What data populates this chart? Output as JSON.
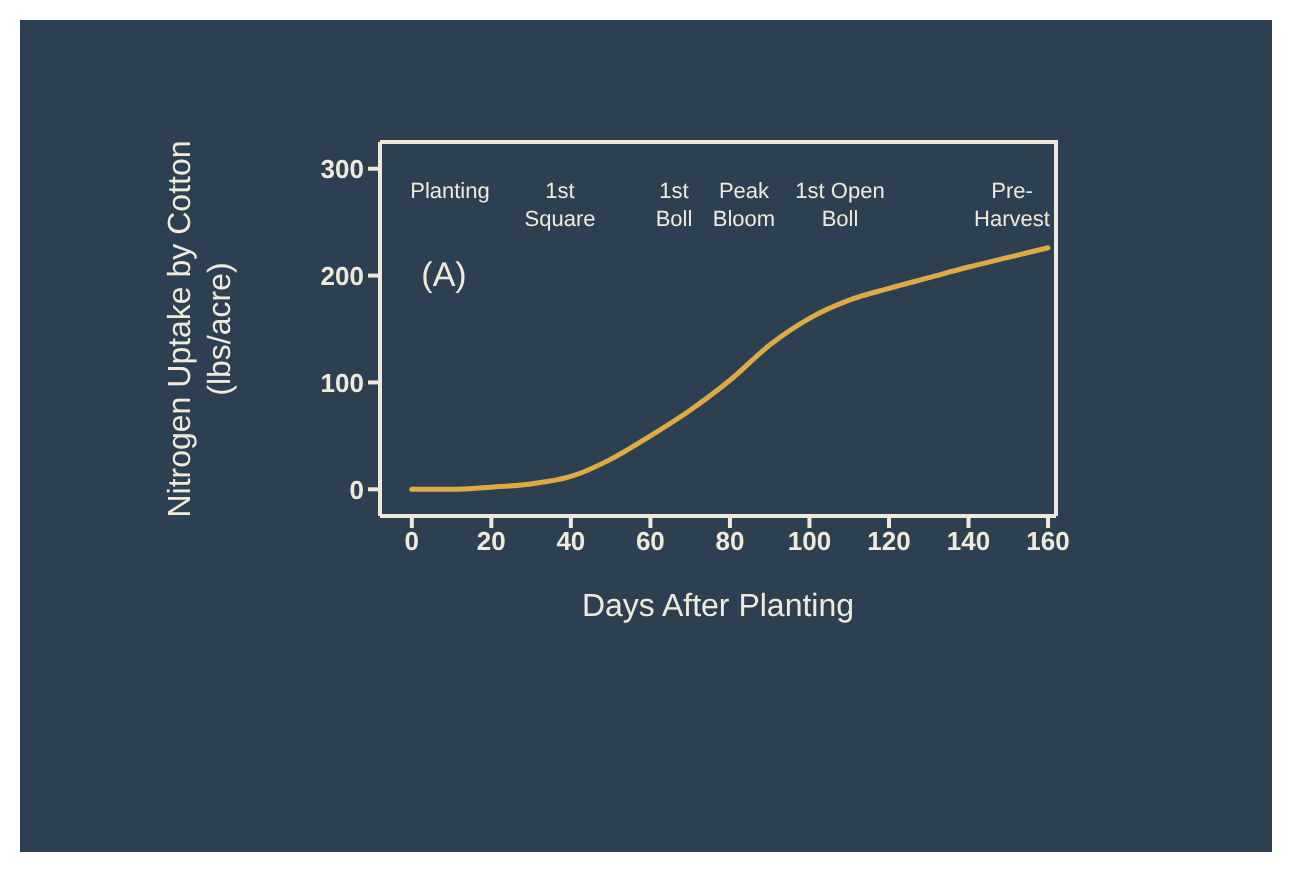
{
  "chart_data": {
    "type": "line",
    "xlabel": "Days After Planting",
    "ylabel": "Nitrogen Uptake by Cotton\n(lbs/acre)",
    "x": [
      0,
      10,
      20,
      30,
      40,
      50,
      60,
      70,
      80,
      90,
      100,
      110,
      120,
      130,
      140,
      150,
      160
    ],
    "series": [
      {
        "color": "#e0aa42",
        "values": [
          0,
          0,
          2,
          5,
          12,
          28,
          50,
          74,
          102,
          135,
          160,
          177,
          188,
          198,
          208,
          217,
          226
        ]
      }
    ],
    "xlim": [
      -8,
      162
    ],
    "xticks": [
      0,
      20,
      40,
      60,
      80,
      100,
      120,
      140,
      160
    ],
    "ylim": [
      -25,
      325
    ],
    "yticks": [
      0,
      100,
      200,
      300
    ],
    "annotations": [
      "Planting",
      "1st\nSquare",
      "1st\nBoll",
      "Peak\nBloom",
      "1st Open\nBoll",
      "Pre-\nHarvest",
      "(A)"
    ],
    "marker": "none",
    "line_style": "solid"
  }
}
